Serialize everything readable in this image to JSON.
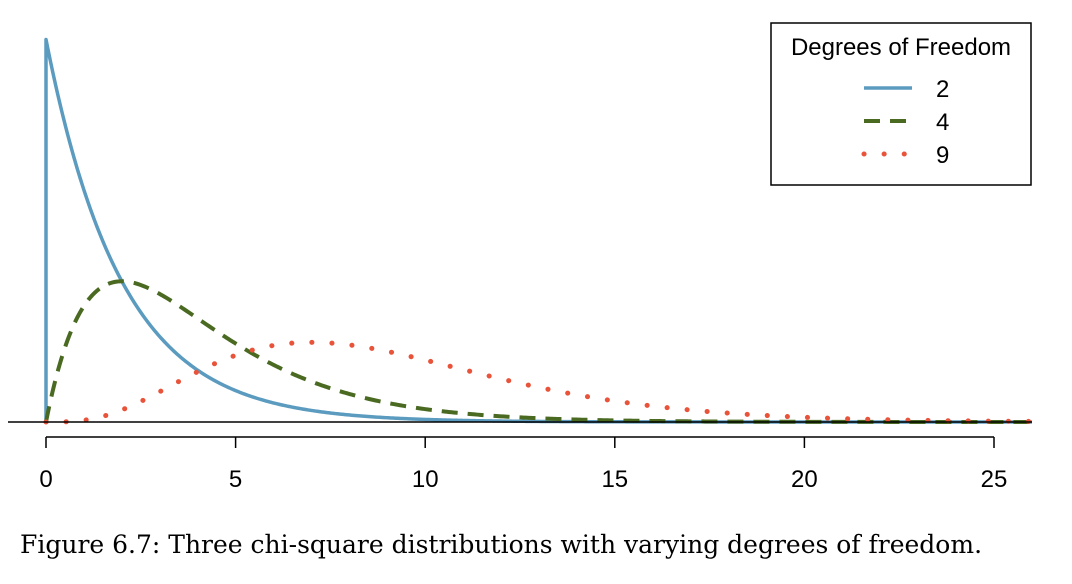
{
  "chart_data": {
    "type": "line",
    "title": "",
    "xlabel": "",
    "ylabel": "",
    "xlim": [
      0,
      26
    ],
    "ylim": [
      0,
      0.5
    ],
    "x_ticks": [
      0,
      5,
      10,
      15,
      20,
      25
    ],
    "x_tick_labels": [
      "0",
      "5",
      "10",
      "15",
      "20",
      "25"
    ],
    "y_axis_shown": false,
    "grid": false,
    "legend": {
      "title": "Degrees of Freedom",
      "placement": "top-right"
    },
    "series": [
      {
        "name": "2",
        "df": 2,
        "style": "solid",
        "color": "#5b9bbf"
      },
      {
        "name": "4",
        "df": 4,
        "style": "dashed",
        "color": "#4a6a22"
      },
      {
        "name": "9",
        "df": 9,
        "style": "dotted",
        "color": "#e8533a"
      }
    ]
  },
  "caption": "Figure 6.7: Three chi-square distributions with varying degrees of freedom."
}
